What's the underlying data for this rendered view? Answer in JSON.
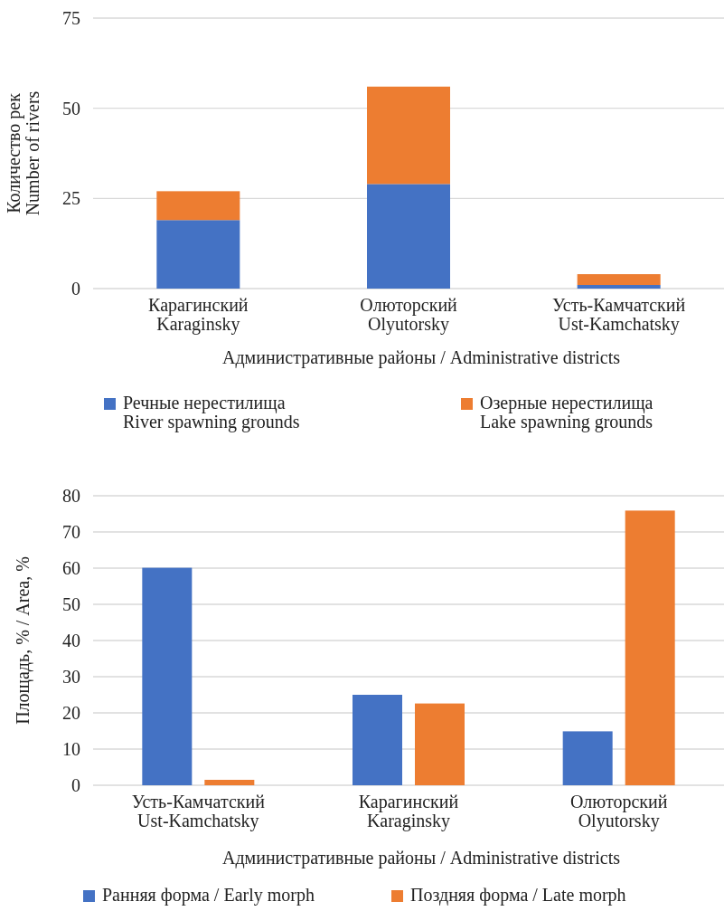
{
  "chart_data": [
    {
      "type": "bar",
      "stacked": true,
      "categories": [
        "Карагинский\nKaraginsky",
        "Олюторский\nOlyutorsky",
        "Усть-Камчатский\nUst-Kamchatsky"
      ],
      "series": [
        {
          "name": "Речные нерестилища\nRiver spawning grounds",
          "color": "#4472c4",
          "values": [
            19,
            29,
            1
          ]
        },
        {
          "name": "Озерные нерестилища\nLake spawning grounds",
          "color": "#ed7d31",
          "values": [
            8,
            27,
            3
          ]
        }
      ],
      "ylim": [
        0,
        75
      ],
      "yticks": [
        0,
        25,
        50,
        75
      ],
      "grid": "y",
      "legend": "bottom",
      "xlabel": "Административные районы / Administrative districts",
      "ylabel": "Количество рек\nNumber of rivers"
    },
    {
      "type": "bar",
      "categories": [
        "Усть-Камчатский\nUst-Kamchatsky",
        "Карагинский\nKaraginsky",
        "Олюторский\nOlyutorsky"
      ],
      "series": [
        {
          "name": "Ранняя форма / Early morph",
          "color": "#4472c4",
          "values": [
            60.1,
            25,
            14.9
          ]
        },
        {
          "name": "Поздняя форма / Late morph",
          "color": "#ed7d31",
          "values": [
            1.5,
            22.6,
            75.9
          ]
        }
      ],
      "ylim": [
        0,
        80
      ],
      "yticks": [
        0,
        10,
        20,
        30,
        40,
        50,
        60,
        70,
        80
      ],
      "grid": "y",
      "legend": "bottom",
      "xlabel": "Административные районы / Administrative districts",
      "ylabel": "Площадь, % / Area, %"
    }
  ]
}
